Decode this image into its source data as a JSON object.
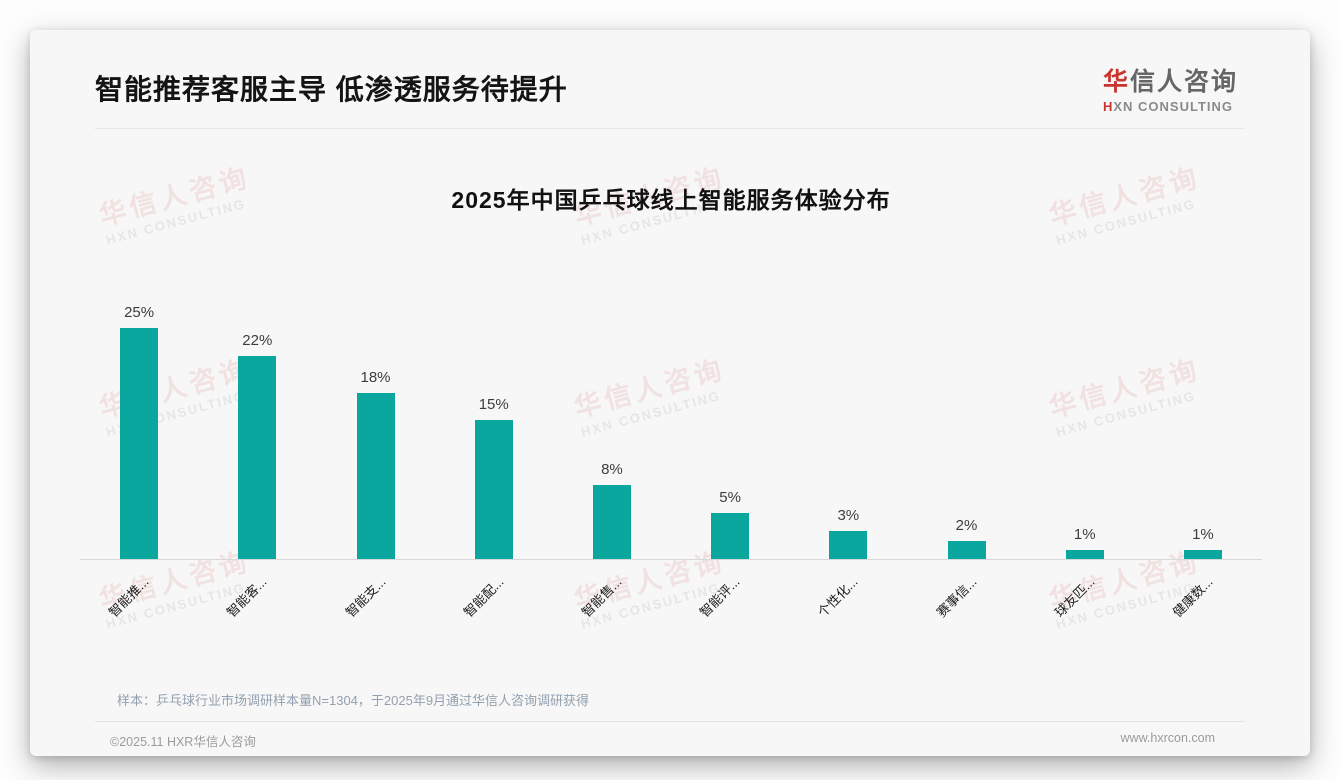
{
  "page": {
    "header": {
      "title": "智能推荐客服主导 低渗透服务待提升"
    },
    "logo": {
      "cn_first": "华",
      "cn_rest": "信人咨询",
      "en_first": "H",
      "en_rest": "XN CONSULTING"
    },
    "watermark": {
      "line1": "华信人咨询",
      "line2": "HXN CONSULTING"
    },
    "note": "样本：乒乓球行业市场调研样本量N=1304，于2025年9月通过华信人咨询调研获得",
    "footer": {
      "left": "©2025.11 HXR华信人咨询",
      "right": "www.hxrcon.com"
    }
  },
  "colors": {
    "bar": "#0aa79e",
    "logo_red": "#c9342e",
    "note_text": "#93a0af",
    "card_bg": "#f7f7f7"
  },
  "chart_data": {
    "type": "bar",
    "title": "2025年中国乒乓球线上智能服务体验分布",
    "categories": [
      "智能推...",
      "智能客...",
      "智能支...",
      "智能配...",
      "智能售...",
      "智能评...",
      "个性化...",
      "赛事信...",
      "球友匹...",
      "健康数..."
    ],
    "values": [
      25,
      22,
      18,
      15,
      8,
      5,
      3,
      2,
      1,
      1
    ],
    "value_labels": [
      "25%",
      "22%",
      "18%",
      "15%",
      "8%",
      "5%",
      "3%",
      "2%",
      "1%",
      "1%"
    ],
    "unit": "%",
    "xlabel": "",
    "ylabel": "",
    "ylim": [
      0,
      26
    ],
    "grid": false,
    "legend": null,
    "bar_color": "#0aa79e",
    "x_tick_rotation": 45
  }
}
